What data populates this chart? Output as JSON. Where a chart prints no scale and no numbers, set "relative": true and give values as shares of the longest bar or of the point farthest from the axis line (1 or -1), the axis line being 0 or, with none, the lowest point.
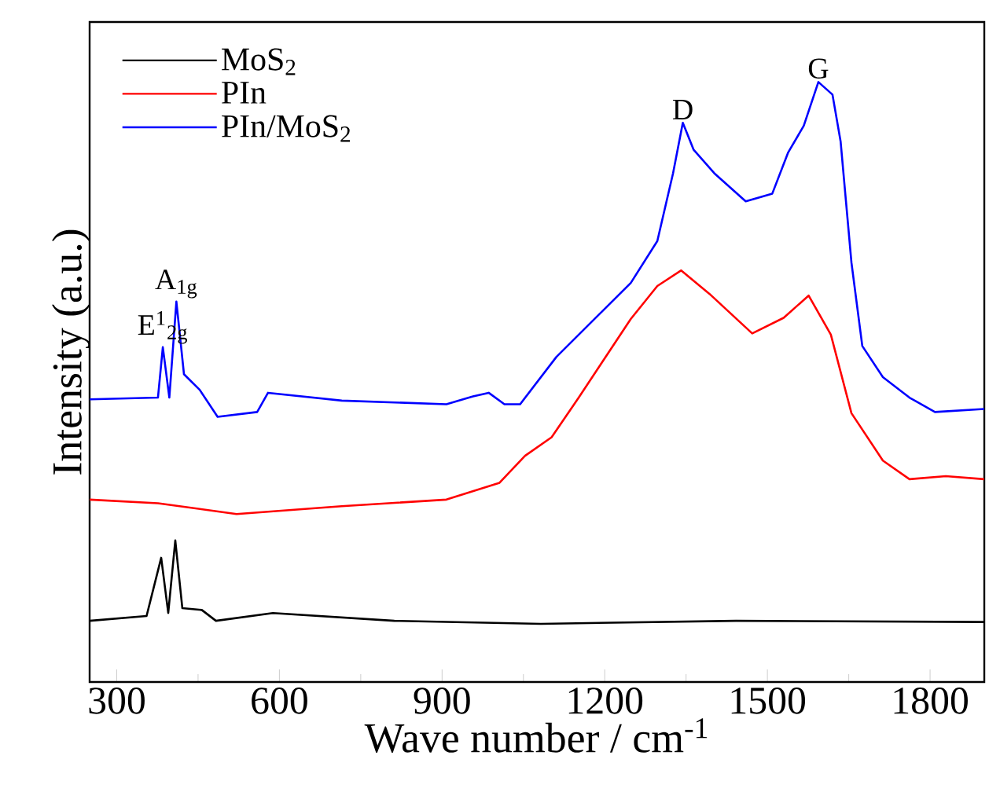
{
  "chart_data": {
    "type": "line",
    "relative": true,
    "xlabel": "Wave number / cm$^{-1}$",
    "ylabel": "Intensity (a.u.)",
    "xlim": [
      250,
      1900
    ],
    "xticks": [
      300,
      600,
      900,
      1200,
      1500,
      1800
    ],
    "legend": "top left",
    "annotations": [
      {
        "text": "E$^{1}$$_{2g}$",
        "x": 385,
        "y": 0.558
      },
      {
        "text": "A$_{1g}$",
        "x": 410,
        "y": 0.634
      },
      {
        "text": "D",
        "x": 1344,
        "y": 0.932
      },
      {
        "text": "G",
        "x": 1594,
        "y": 1.0
      }
    ],
    "series": [
      {
        "name": "MoS$_{2}$",
        "color": "#000000",
        "x": [
          250,
          355,
          382,
          395,
          408,
          421,
          457,
          483,
          588,
          812,
          1082,
          1442,
          1900
        ],
        "values": [
          0.102,
          0.11,
          0.207,
          0.115,
          0.236,
          0.123,
          0.12,
          0.102,
          0.115,
          0.102,
          0.097,
          0.102,
          0.1
        ]
      },
      {
        "name": "PIn",
        "color": "#ff0000",
        "x": [
          250,
          376,
          521,
          715,
          908,
          1006,
          1053,
          1102,
          1152,
          1248,
          1297,
          1341,
          1393,
          1472,
          1530,
          1576,
          1617,
          1655,
          1713,
          1762,
          1829,
          1900
        ],
        "values": [
          0.304,
          0.298,
          0.28,
          0.293,
          0.304,
          0.332,
          0.377,
          0.408,
          0.474,
          0.605,
          0.66,
          0.686,
          0.647,
          0.581,
          0.607,
          0.644,
          0.579,
          0.448,
          0.369,
          0.338,
          0.343,
          0.338
        ]
      },
      {
        "name": "PIn/MoS$_{2}$",
        "color": "#0000ff",
        "x": [
          250,
          376,
          385,
          397,
          410,
          424,
          453,
          486,
          559,
          579,
          715,
          908,
          957,
          986,
          1015,
          1044,
          1111,
          1190,
          1248,
          1297,
          1326,
          1344,
          1364,
          1402,
          1460,
          1509,
          1538,
          1567,
          1594,
          1620,
          1635,
          1655,
          1675,
          1713,
          1762,
          1809,
          1900
        ],
        "values": [
          0.471,
          0.474,
          0.558,
          0.474,
          0.634,
          0.513,
          0.487,
          0.442,
          0.45,
          0.482,
          0.469,
          0.463,
          0.476,
          0.482,
          0.463,
          0.463,
          0.542,
          0.613,
          0.665,
          0.735,
          0.848,
          0.932,
          0.887,
          0.848,
          0.801,
          0.814,
          0.882,
          0.927,
          1.0,
          0.979,
          0.901,
          0.699,
          0.56,
          0.508,
          0.474,
          0.45,
          0.455
        ]
      }
    ]
  }
}
